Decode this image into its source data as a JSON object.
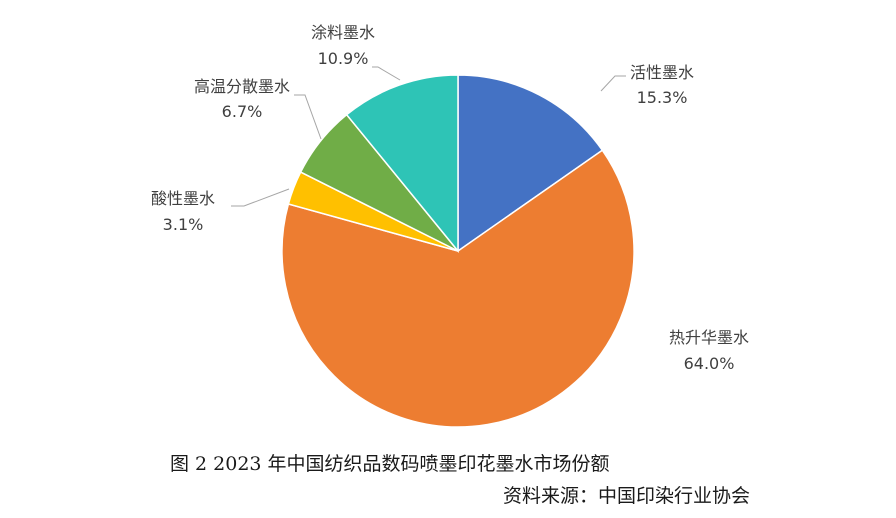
{
  "chart_data": {
    "type": "pie",
    "start_angle_deg": 0,
    "direction": "clockwise",
    "slices": [
      {
        "label": "活性墨水",
        "value": 15.3,
        "value_label": "15.3%",
        "color": "#4472C4"
      },
      {
        "label": "热升华墨水",
        "value": 64.0,
        "value_label": "64.0%",
        "color": "#ED7D31"
      },
      {
        "label": "酸性墨水",
        "value": 3.1,
        "value_label": "3.1%",
        "color": "#FFC000"
      },
      {
        "label": "高温分散墨水",
        "value": 6.7,
        "value_label": "6.7%",
        "color": "#70AD47"
      },
      {
        "label": "涂料墨水",
        "value": 10.9,
        "value_label": "10.9%",
        "color": "#2EC4B6"
      }
    ],
    "slice_border_color": "#FFFFFF",
    "leader_line_color": "#A6A6A6"
  },
  "captions": {
    "figure": "图 2  2023 年中国纺织品数码喷墨印花墨水市场份额",
    "source": "资料来源：中国印染行业协会"
  }
}
